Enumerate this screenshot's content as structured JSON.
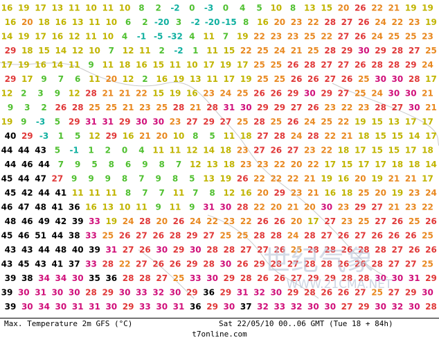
{
  "map": {
    "rows": [
      [
        16,
        19,
        17,
        13,
        11,
        10,
        11,
        10,
        8,
        2,
        -2,
        0,
        -3,
        0,
        4,
        5,
        10,
        8,
        13,
        15,
        20,
        26,
        22,
        21,
        19,
        19
      ],
      [
        16,
        20,
        18,
        16,
        13,
        11,
        10,
        6,
        2,
        -20,
        3,
        -2,
        -20,
        -15,
        8,
        16,
        20,
        23,
        22,
        28,
        27,
        26,
        24,
        22,
        23,
        19
      ],
      [
        14,
        19,
        17,
        16,
        12,
        11,
        10,
        4,
        -1,
        -5,
        -32,
        4,
        11,
        7,
        19,
        22,
        23,
        23,
        25,
        22,
        27,
        26,
        24,
        25,
        25,
        23
      ],
      [
        29,
        18,
        15,
        14,
        12,
        10,
        7,
        12,
        11,
        2,
        -2,
        1,
        11,
        15,
        22,
        25,
        24,
        21,
        25,
        28,
        29,
        30,
        29,
        28,
        27,
        25
      ],
      [
        17,
        19,
        16,
        14,
        11,
        9,
        11,
        18,
        16,
        15,
        11,
        10,
        17,
        19,
        17,
        25,
        25,
        26,
        28,
        27,
        27,
        26,
        28,
        28,
        29,
        24
      ],
      [
        29,
        17,
        9,
        7,
        6,
        11,
        20,
        12,
        2,
        16,
        19,
        13,
        11,
        17,
        19,
        25,
        25,
        26,
        26,
        27,
        26,
        25,
        30,
        30,
        28,
        17
      ],
      [
        12,
        2,
        3,
        9,
        12,
        28,
        21,
        21,
        22,
        15,
        19,
        16,
        23,
        24,
        25,
        26,
        26,
        29,
        30,
        29,
        27,
        25,
        24,
        30,
        30,
        21
      ],
      [
        9,
        3,
        2,
        26,
        28,
        25,
        25,
        21,
        23,
        25,
        28,
        21,
        28,
        31,
        30,
        29,
        29,
        27,
        26,
        23,
        22,
        23,
        28,
        27,
        30,
        21
      ],
      [
        19,
        9,
        -3,
        5,
        29,
        31,
        31,
        29,
        30,
        30,
        23,
        27,
        29,
        27,
        25,
        28,
        25,
        26,
        24,
        25,
        22,
        19,
        15,
        13,
        17,
        17
      ],
      [
        40,
        29,
        -3,
        1,
        5,
        12,
        29,
        16,
        21,
        20,
        10,
        8,
        5,
        11,
        18,
        27,
        28,
        24,
        28,
        22,
        21,
        18,
        15,
        15,
        14,
        17
      ],
      [
        44,
        44,
        43,
        5,
        -1,
        1,
        2,
        0,
        4,
        11,
        11,
        12,
        14,
        18,
        23,
        27,
        26,
        27,
        23,
        22,
        18,
        17,
        15,
        15,
        17,
        18
      ],
      [
        44,
        46,
        44,
        7,
        9,
        5,
        8,
        6,
        9,
        8,
        7,
        12,
        13,
        18,
        23,
        23,
        22,
        20,
        22,
        17,
        15,
        17,
        17,
        18,
        18,
        14
      ],
      [
        45,
        44,
        47,
        27,
        9,
        9,
        9,
        8,
        7,
        9,
        8,
        5,
        13,
        19,
        26,
        22,
        22,
        22,
        21,
        19,
        16,
        20,
        19,
        21,
        21,
        17
      ],
      [
        45,
        42,
        44,
        41,
        11,
        11,
        11,
        8,
        7,
        7,
        11,
        7,
        8,
        12,
        16,
        20,
        29,
        23,
        21,
        16,
        18,
        25,
        20,
        19,
        23,
        24
      ],
      [
        46,
        47,
        48,
        41,
        36,
        16,
        13,
        10,
        11,
        9,
        11,
        9,
        31,
        30,
        28,
        22,
        20,
        21,
        20,
        30,
        23,
        29,
        27,
        21,
        23,
        22
      ],
      [
        48,
        46,
        49,
        42,
        39,
        33,
        19,
        24,
        28,
        20,
        26,
        24,
        22,
        23,
        22,
        26,
        26,
        20,
        17,
        27,
        23,
        25,
        27,
        26,
        25,
        26
      ],
      [
        45,
        46,
        51,
        44,
        38,
        33,
        25,
        26,
        27,
        26,
        28,
        29,
        27,
        25,
        25,
        28,
        28,
        24,
        28,
        27,
        26,
        27,
        26,
        26,
        26,
        25
      ],
      [
        43,
        43,
        44,
        48,
        40,
        39,
        31,
        27,
        26,
        30,
        29,
        30,
        28,
        28,
        27,
        27,
        26,
        25,
        28,
        28,
        26,
        28,
        28,
        27,
        26,
        26
      ],
      [
        43,
        45,
        43,
        41,
        37,
        33,
        28,
        22,
        27,
        26,
        26,
        29,
        28,
        30,
        26,
        29,
        28,
        27,
        28,
        28,
        26,
        26,
        28,
        27,
        27,
        25
      ],
      [
        39,
        38,
        34,
        34,
        30,
        35,
        36,
        28,
        28,
        27,
        25,
        33,
        30,
        29,
        28,
        26,
        26,
        27,
        29,
        29,
        28,
        28,
        30,
        30,
        31,
        29
      ],
      [
        39,
        30,
        31,
        30,
        30,
        28,
        29,
        30,
        33,
        32,
        30,
        29,
        36,
        29,
        31,
        32,
        30,
        29,
        28,
        26,
        26,
        27,
        25,
        27,
        29,
        30
      ],
      [
        39,
        30,
        34,
        30,
        31,
        31,
        30,
        29,
        33,
        30,
        31,
        36,
        29,
        30,
        37,
        32,
        33,
        32,
        30,
        30,
        27,
        29,
        30,
        32,
        30,
        28
      ]
    ]
  },
  "watermark": {
    "title": "世纪气象",
    "url": "WWW.21CMA.NET"
  },
  "footer": {
    "left": "Max. Temperature 2m GFS (°C)",
    "right": "Sat 22/05/10 00..06 GMT (Tue 18 + 84h)",
    "site": "t7online.com"
  }
}
